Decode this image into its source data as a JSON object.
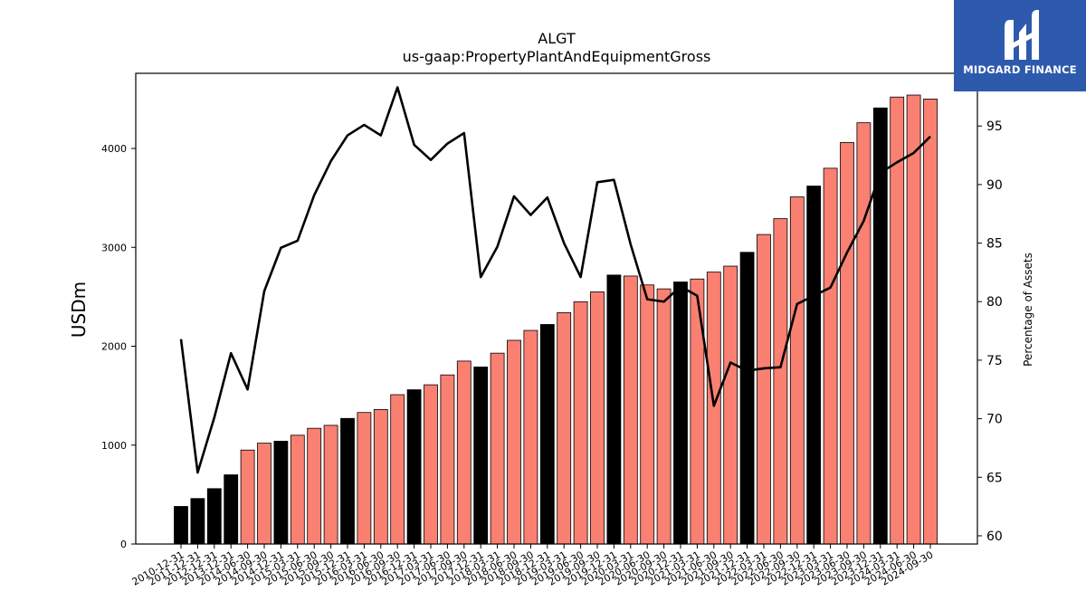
{
  "brand": {
    "name": "MIDGARD FINANCE",
    "logo_icon": "midgard-m-icon",
    "background_color": "#2e5aad"
  },
  "chart_data": {
    "type": "bar",
    "title": "ALGT",
    "subtitle": "us-gaap:PropertyPlantAndEquipmentGross",
    "ylabel": "USDm",
    "y2label": "Percentage of Assets",
    "ylim": [
      0,
      4760
    ],
    "y2lim": [
      59.3,
      99.5
    ],
    "yticks": [
      0,
      1000,
      2000,
      3000,
      4000
    ],
    "y2ticks": [
      60,
      65,
      70,
      75,
      80,
      85,
      90,
      95
    ],
    "categories": [
      "2010-12-31",
      "2011-12-31",
      "2012-12-31",
      "2013-12-31",
      "2014-06-30",
      "2014-09-30",
      "2014-12-31",
      "2015-03-31",
      "2015-06-30",
      "2015-09-30",
      "2015-12-31",
      "2016-03-31",
      "2016-06-30",
      "2016-09-30",
      "2016-12-31",
      "2017-03-31",
      "2017-06-30",
      "2017-09-30",
      "2017-12-31",
      "2018-03-31",
      "2018-06-30",
      "2018-09-30",
      "2018-12-31",
      "2019-03-31",
      "2019-06-30",
      "2019-09-30",
      "2019-12-31",
      "2020-03-31",
      "2020-06-30",
      "2020-09-30",
      "2020-12-31",
      "2021-03-31",
      "2021-06-30",
      "2021-09-30",
      "2021-12-31",
      "2022-03-31",
      "2022-06-30",
      "2022-09-30",
      "2022-12-31",
      "2023-03-31",
      "2023-06-30",
      "2023-09-30",
      "2023-12-31",
      "2024-03-31",
      "2024-06-30",
      "2024-09-30"
    ],
    "series": [
      {
        "kind": "bar",
        "values": [
          380,
          460,
          560,
          700,
          950,
          1020,
          1040,
          1100,
          1170,
          1200,
          1270,
          1330,
          1360,
          1510,
          1560,
          1610,
          1710,
          1850,
          1790,
          1930,
          2060,
          2160,
          2220,
          2340,
          2450,
          2550,
          2720,
          2710,
          2620,
          2580,
          2650,
          2680,
          2750,
          2810,
          2950,
          3130,
          3290,
          3510,
          3620,
          3800,
          4060,
          4260,
          4410,
          4520,
          4540,
          4500
        ],
        "annual": [
          true,
          true,
          true,
          true,
          false,
          false,
          true,
          false,
          false,
          false,
          true,
          false,
          false,
          false,
          true,
          false,
          false,
          false,
          true,
          false,
          false,
          false,
          true,
          false,
          false,
          false,
          true,
          false,
          false,
          false,
          true,
          false,
          false,
          false,
          true,
          false,
          false,
          false,
          true,
          false,
          false,
          false,
          true,
          false,
          false,
          false
        ]
      },
      {
        "kind": "line",
        "axis": "right",
        "values": [
          76.8,
          65.4,
          70.1,
          75.6,
          72.5,
          80.9,
          84.6,
          85.2,
          89.1,
          92.0,
          94.2,
          95.1,
          94.2,
          98.3,
          93.4,
          92.1,
          93.5,
          94.4,
          82.1,
          84.7,
          89.0,
          87.4,
          88.9,
          85.0,
          82.1,
          90.2,
          90.4,
          84.9,
          80.2,
          80.0,
          81.3,
          80.5,
          71.1,
          74.8,
          74.1,
          74.3,
          74.4,
          79.8,
          80.5,
          81.2,
          84.2,
          86.9,
          91.0,
          91.9,
          92.7,
          94.1
        ]
      }
    ],
    "colors": {
      "annual_bar": "#000000",
      "quarter_bar": "#fa8072",
      "line": "#000000"
    },
    "grid": false,
    "legend": "none"
  }
}
